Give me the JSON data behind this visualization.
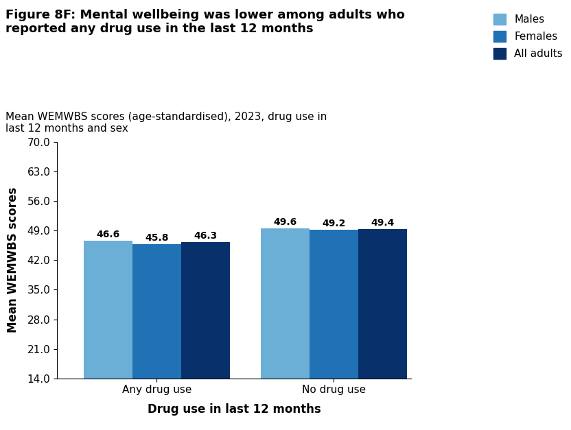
{
  "title_bold": "Figure 8F: Mental wellbeing was lower among adults who\nreported any drug use in the last 12 months",
  "subtitle": "Mean WEMWBS scores (age-standardised), 2023, drug use in\nlast 12 months and sex",
  "xlabel": "Drug use in last 12 months",
  "ylabel": "Mean WEMWBS scores",
  "categories": [
    "Any drug use",
    "No drug use"
  ],
  "series": {
    "Males": [
      46.6,
      49.6
    ],
    "Females": [
      45.8,
      49.2
    ],
    "All adults": [
      46.3,
      49.4
    ]
  },
  "colors": {
    "Males": "#6BAED6",
    "Females": "#2171B5",
    "All adults": "#08306B"
  },
  "ylim": [
    14.0,
    70.0
  ],
  "yticks": [
    14.0,
    21.0,
    28.0,
    35.0,
    42.0,
    49.0,
    56.0,
    63.0,
    70.0
  ],
  "bar_width": 0.22,
  "label_fontsize": 10,
  "tick_fontsize": 11,
  "axis_label_fontsize": 12,
  "title_fontsize": 13,
  "subtitle_fontsize": 11,
  "legend_fontsize": 11,
  "background_color": "#ffffff"
}
